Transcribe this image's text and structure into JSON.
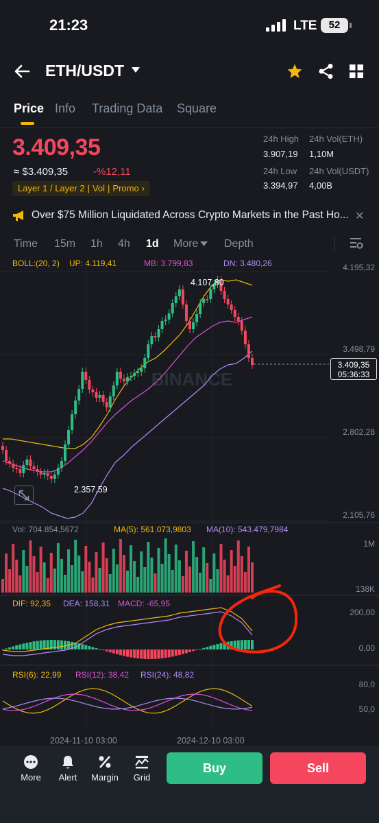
{
  "status_bar": {
    "time": "21:23",
    "network": "LTE",
    "battery": "52"
  },
  "header": {
    "pair": "ETH/USDT",
    "icons": [
      "back-arrow-icon",
      "caret-down-icon",
      "star-icon",
      "share-icon",
      "grid-icon"
    ]
  },
  "tabs": [
    {
      "label": "Price",
      "active": true
    },
    {
      "label": "Info",
      "active": false
    },
    {
      "label": "Trading Data",
      "active": false
    },
    {
      "label": "Square",
      "active": false
    }
  ],
  "price": {
    "last": "3.409,35",
    "usd": "≈ $3.409,35",
    "change_pct": "-%12,11",
    "tags": [
      "Layer 1 / Layer 2",
      "Vol",
      "Promo"
    ],
    "tag_sep": "|",
    "tag_arrow": "›"
  },
  "stats": {
    "high_label": "24h High",
    "high": "3.907,19",
    "vol_eth_label": "24h Vol(ETH)",
    "vol_eth": "1,10M",
    "low_label": "24h Low",
    "low": "3.394,97",
    "vol_usdt_label": "24h Vol(USDT)",
    "vol_usdt": "4,00B"
  },
  "news": {
    "text": "Over $75 Million Liquidated Across Crypto Markets in the Past Ho...",
    "close": "✕"
  },
  "timeframes": {
    "items": [
      {
        "label": "Time",
        "active": false
      },
      {
        "label": "15m",
        "active": false
      },
      {
        "label": "1h",
        "active": false
      },
      {
        "label": "4h",
        "active": false
      },
      {
        "label": "1d",
        "active": true
      },
      {
        "label": "More",
        "active": false
      },
      {
        "label": "Depth",
        "active": false
      }
    ]
  },
  "boll": {
    "label": "BOLL:(20, 2)",
    "up": "UP: 4.119,41",
    "mb": "MB: 3.799,83",
    "dn": "DN: 3.480,26"
  },
  "price_axis": [
    "4.195,32",
    "3.498,79",
    "2.802,28",
    "2.105,76"
  ],
  "price_tag": {
    "price": "3.409,35",
    "countdown": "05:36:33"
  },
  "markers": {
    "high": "4.107,80",
    "low": "2.357,59"
  },
  "watermark": "BINANCE",
  "volume": {
    "vol": "Vol: 704.854,5672",
    "ma5": "MA(5): 561.073,9803",
    "ma10": "MA(10): 543.479,7984",
    "axis_top": "1M",
    "axis_bottom": "138K"
  },
  "macd": {
    "dif": "DIF: 92,35",
    "dea": "DEA: 158,31",
    "macd": "MACD: -65,95",
    "axis_top": "200,00",
    "axis_bottom": "0,00"
  },
  "rsi": {
    "rsi6": "RSI(6): 22,99",
    "rsi12": "RSI(12): 38,42",
    "rsi24": "RSI(24): 48,82",
    "axis_top": "80,0",
    "axis_bottom": "50,0"
  },
  "dates": [
    "2024-11-10 03:00",
    "2024-12-10 03:00"
  ],
  "bottom_nav": {
    "items": [
      {
        "label": "More",
        "icon": "more-dots-icon"
      },
      {
        "label": "Alert",
        "icon": "bell-icon"
      },
      {
        "label": "Margin",
        "icon": "margin-percent-icon"
      },
      {
        "label": "Grid",
        "icon": "grid-bot-icon"
      }
    ],
    "buy": "Buy",
    "sell": "Sell"
  },
  "colors": {
    "background": "#181a20",
    "up": "#2ebd85",
    "down": "#f6465d",
    "accent": "#f0b90b",
    "boll_mb": "#e04fd6",
    "boll_dn": "#b08cf4"
  }
}
